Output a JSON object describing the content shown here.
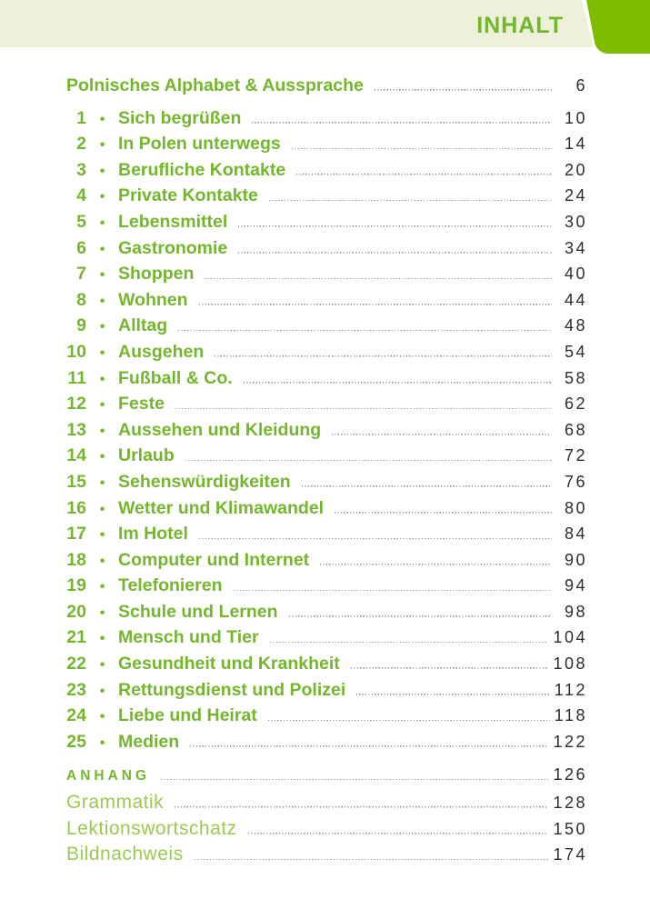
{
  "header": {
    "title": "INHALT"
  },
  "colors": {
    "accent": "#74b62c",
    "accent_light": "#9cc94e",
    "tab_green": "#80bd01",
    "band": "#edf1da",
    "page_number": "#2d2d2d",
    "leader_dots": "#8f8f8f"
  },
  "toc": {
    "intro": {
      "title": "Polnisches Alphabet & Aussprache",
      "page": "6"
    },
    "chapters": [
      {
        "num": "1",
        "title": "Sich begrüßen",
        "page": "10"
      },
      {
        "num": "2",
        "title": "In Polen unterwegs",
        "page": "14"
      },
      {
        "num": "3",
        "title": "Berufliche Kontakte",
        "page": "20"
      },
      {
        "num": "4",
        "title": "Private Kontakte",
        "page": "24"
      },
      {
        "num": "5",
        "title": "Lebensmittel",
        "page": "30"
      },
      {
        "num": "6",
        "title": "Gastronomie",
        "page": "34"
      },
      {
        "num": "7",
        "title": "Shoppen",
        "page": "40"
      },
      {
        "num": "8",
        "title": "Wohnen",
        "page": "44"
      },
      {
        "num": "9",
        "title": "Alltag",
        "page": "48"
      },
      {
        "num": "10",
        "title": "Ausgehen",
        "page": "54"
      },
      {
        "num": "11",
        "title": "Fußball & Co.",
        "page": "58"
      },
      {
        "num": "12",
        "title": "Feste",
        "page": "62"
      },
      {
        "num": "13",
        "title": "Aussehen und Kleidung",
        "page": "68"
      },
      {
        "num": "14",
        "title": "Urlaub",
        "page": "72"
      },
      {
        "num": "15",
        "title": "Sehenswürdigkeiten",
        "page": "76"
      },
      {
        "num": "16",
        "title": "Wetter und Klimawandel",
        "page": "80"
      },
      {
        "num": "17",
        "title": "Im Hotel",
        "page": "84"
      },
      {
        "num": "18",
        "title": "Computer und Internet",
        "page": "90"
      },
      {
        "num": "19",
        "title": "Telefonieren",
        "page": "94"
      },
      {
        "num": "20",
        "title": "Schule und Lernen",
        "page": "98"
      },
      {
        "num": "21",
        "title": "Mensch und Tier",
        "page": "104"
      },
      {
        "num": "22",
        "title": "Gesundheit und Krankheit",
        "page": "108"
      },
      {
        "num": "23",
        "title": "Rettungsdienst und Polizei",
        "page": "112"
      },
      {
        "num": "24",
        "title": "Liebe und Heirat",
        "page": "118"
      },
      {
        "num": "25",
        "title": "Medien",
        "page": "122"
      }
    ],
    "appendix": [
      {
        "title": "ANHANG",
        "page": "126",
        "style": "heading"
      },
      {
        "title": "Grammatik",
        "page": "128",
        "style": "light"
      },
      {
        "title": "Lektionswortschatz",
        "page": "150",
        "style": "light"
      },
      {
        "title": "Bildnachweis",
        "page": "174",
        "style": "light"
      }
    ]
  }
}
